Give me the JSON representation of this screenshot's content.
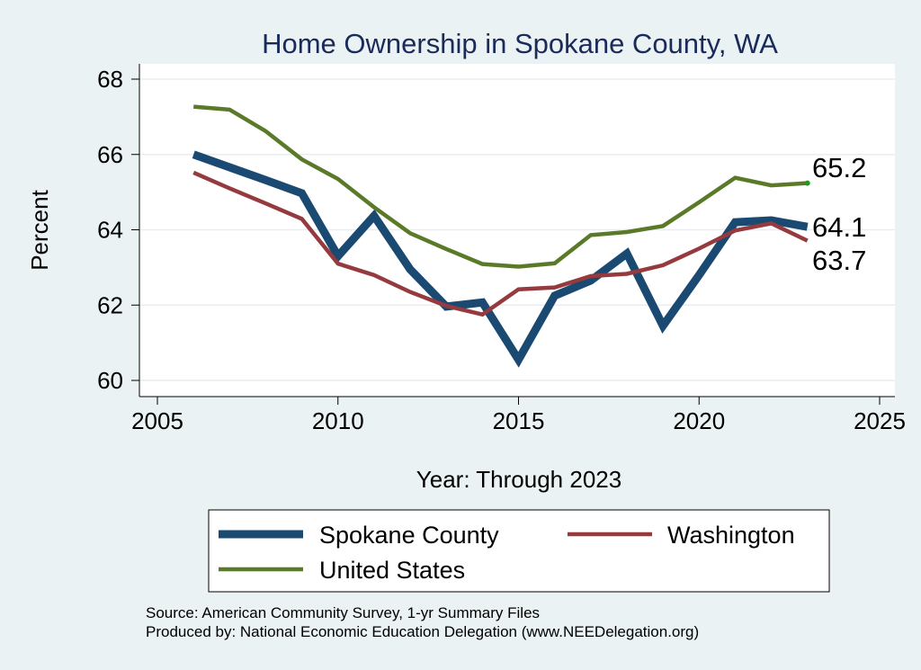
{
  "chart_data": {
    "type": "line",
    "title": "Home Ownership in Spokane County, WA",
    "xlabel": "Year: Through 2023",
    "ylabel": "Percent",
    "xlim": [
      2005,
      2025
    ],
    "ylim": [
      60,
      68
    ],
    "x_ticks": [
      "2005",
      "2010",
      "2015",
      "2020",
      "2025"
    ],
    "y_ticks": [
      "60",
      "62",
      "64",
      "66",
      "68"
    ],
    "grid": true,
    "legend_position": "bottom",
    "series": [
      {
        "name": "Spokane County",
        "color": "#1a4a72",
        "end_label": "64.1",
        "x": [
          2006,
          2007,
          2008,
          2009,
          2010,
          2011,
          2012,
          2013,
          2014,
          2015,
          2016,
          2017,
          2018,
          2019,
          2020,
          2021,
          2022,
          2023
        ],
        "values": [
          66.0,
          65.66,
          65.32,
          64.97,
          63.3,
          64.37,
          62.95,
          61.96,
          62.07,
          60.55,
          62.25,
          62.65,
          63.37,
          61.45,
          62.8,
          64.2,
          64.25,
          64.08
        ]
      },
      {
        "name": "Washington",
        "color": "#953a3e",
        "end_label": "63.7",
        "x": [
          2006,
          2007,
          2008,
          2009,
          2010,
          2011,
          2012,
          2013,
          2014,
          2015,
          2016,
          2017,
          2018,
          2019,
          2020,
          2021,
          2022,
          2023
        ],
        "values": [
          65.52,
          65.1,
          64.7,
          64.29,
          63.1,
          62.8,
          62.35,
          61.98,
          61.75,
          62.42,
          62.47,
          62.77,
          62.83,
          63.06,
          63.5,
          63.98,
          64.17,
          63.71
        ]
      },
      {
        "name": "United States",
        "color": "#5a7a2a",
        "end_label": "65.2",
        "x": [
          2006,
          2007,
          2008,
          2009,
          2010,
          2011,
          2012,
          2013,
          2014,
          2015,
          2016,
          2017,
          2018,
          2019,
          2020,
          2021,
          2022,
          2023
        ],
        "values": [
          67.27,
          67.19,
          66.62,
          65.87,
          65.35,
          64.6,
          63.91,
          63.49,
          63.09,
          63.02,
          63.11,
          63.86,
          63.94,
          64.1,
          64.73,
          65.38,
          65.18,
          65.24
        ]
      }
    ]
  },
  "footer": {
    "source": "Source: American Community Survey, 1-yr Summary Files",
    "produced_by": "Produced by: National Economic Education Delegation (www.NEEDelegation.org)"
  }
}
